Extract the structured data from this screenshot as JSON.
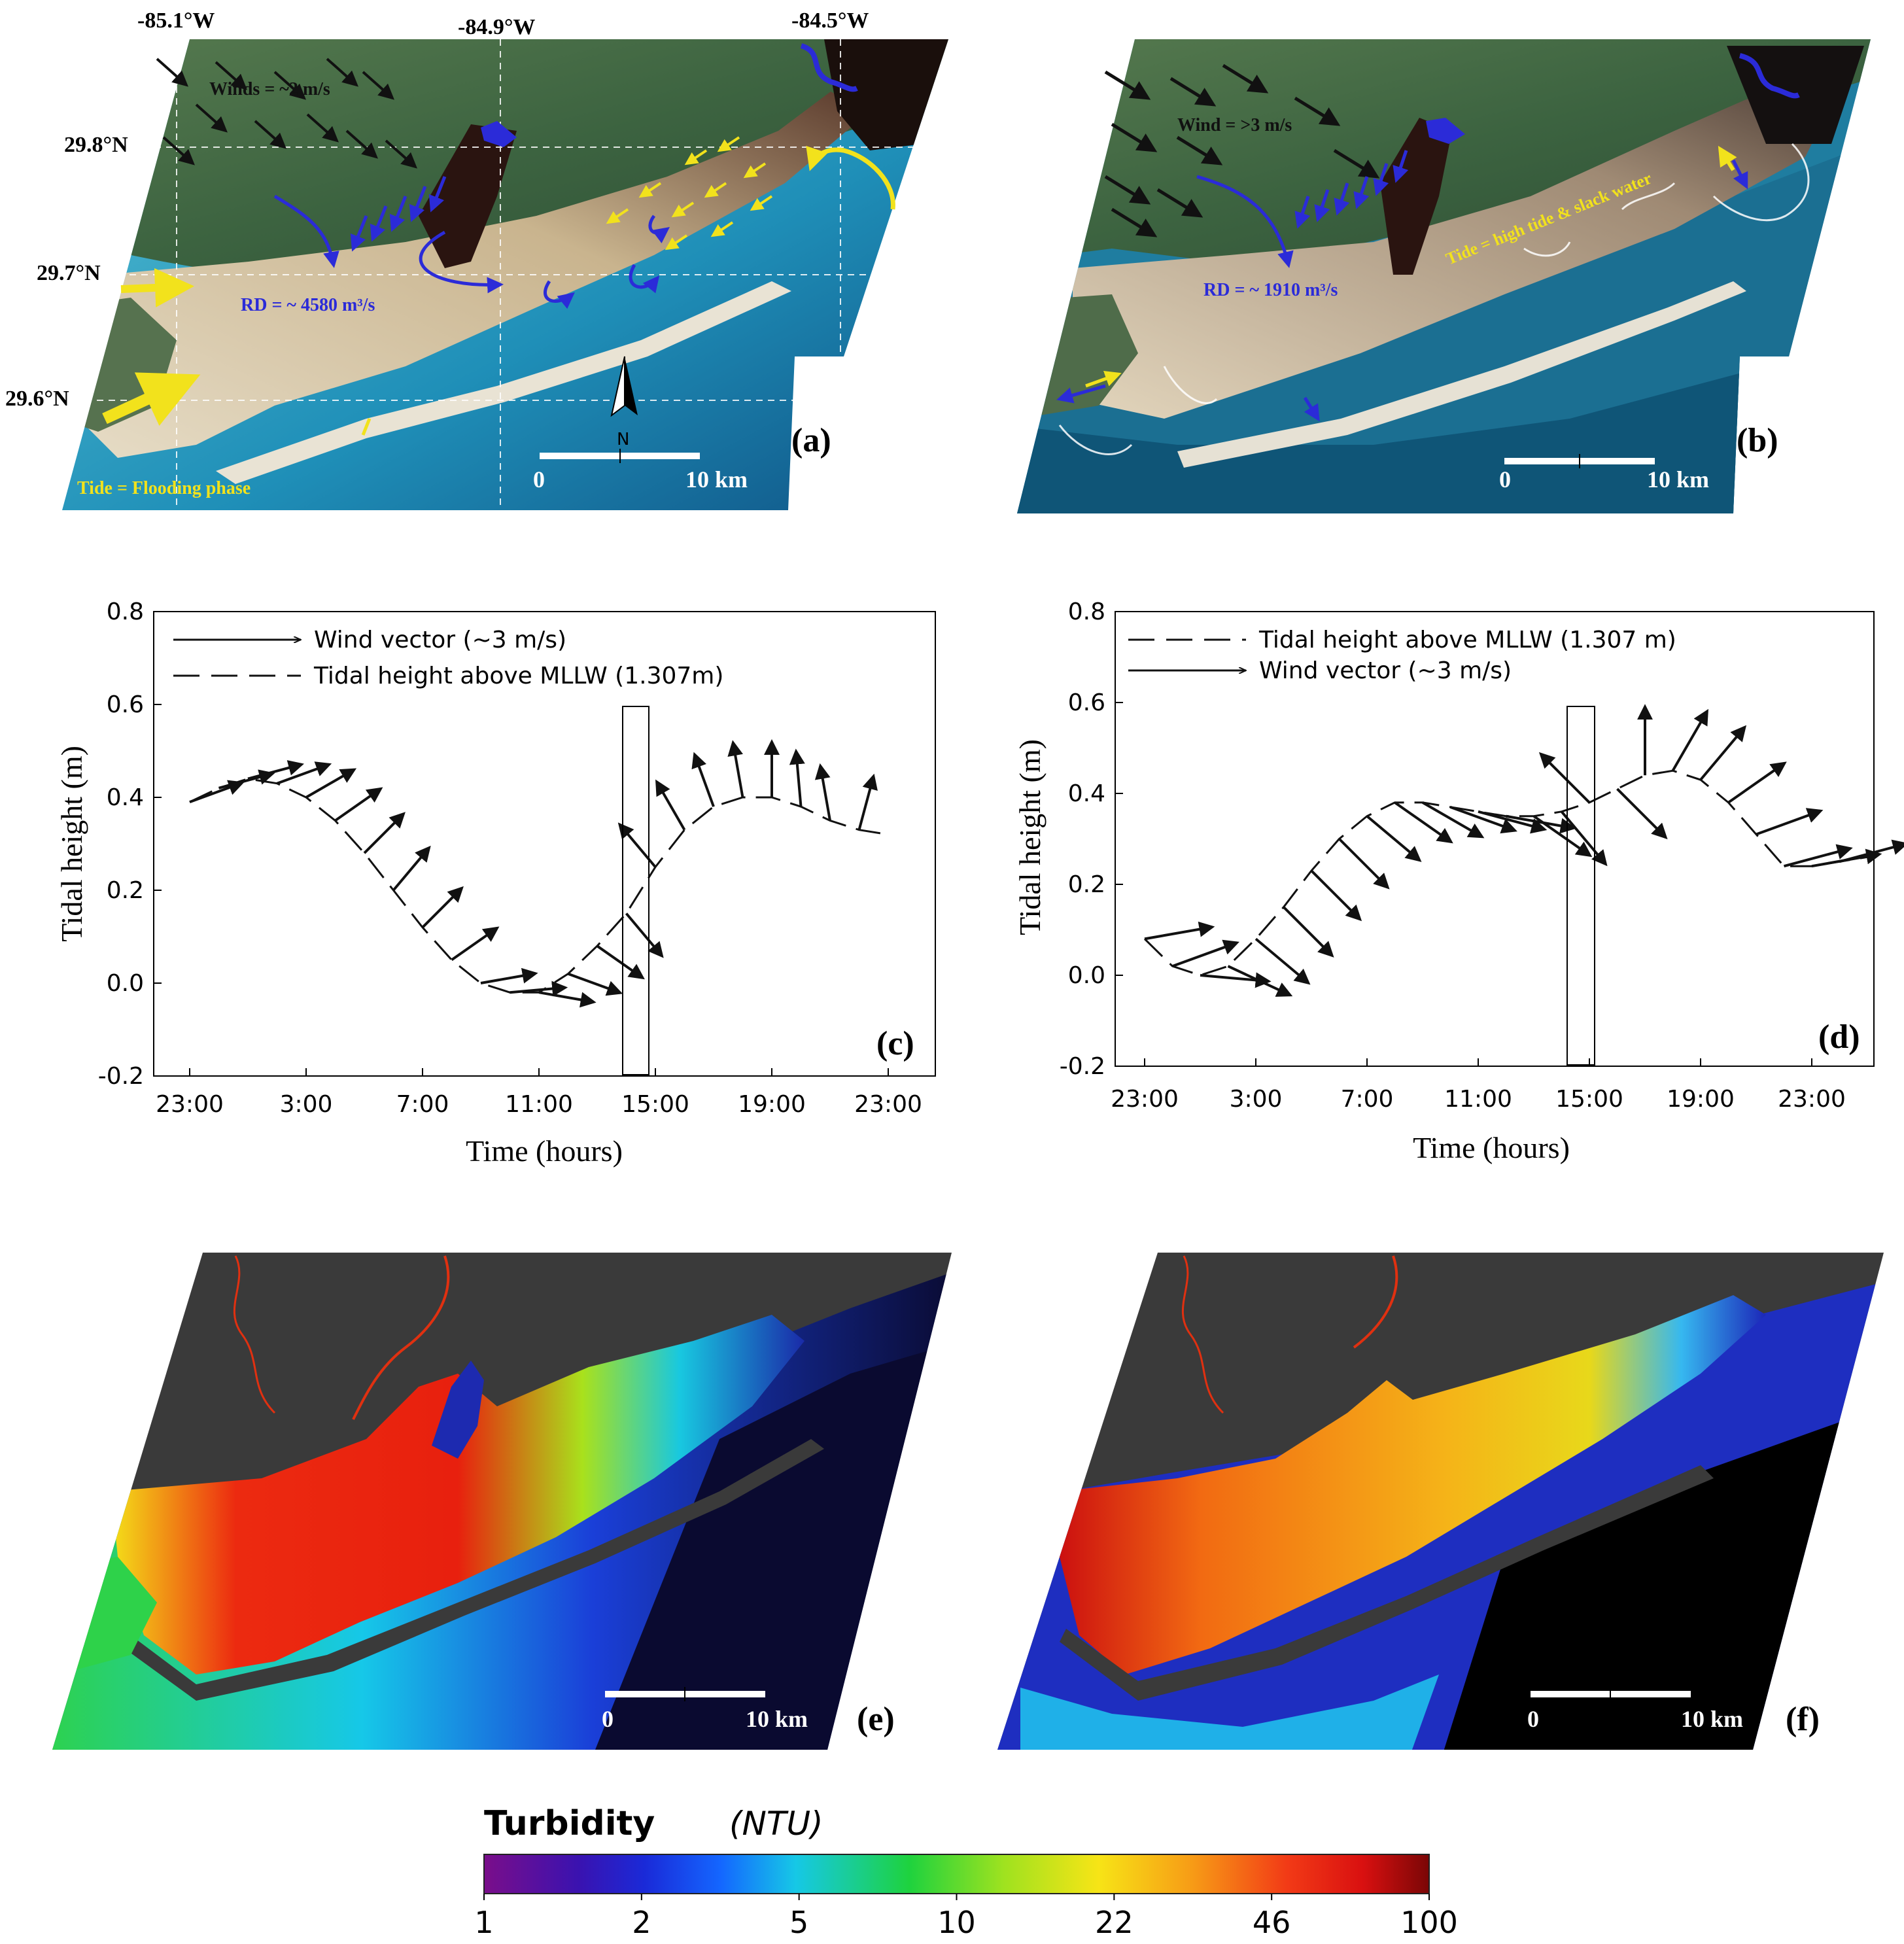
{
  "panels": {
    "a": {
      "letter": "(a)",
      "lon_labels": [
        "-85.1°W",
        "-84.9°W",
        "-84.5°W"
      ],
      "lat_labels": [
        "29.8°N",
        "29.7°N",
        "29.6°N"
      ],
      "winds_label": "Winds = ~2 m/s",
      "rd_label": "RD = ~ 4580 m³/s",
      "tide_label": "Tide = Flooding phase",
      "north_label": "N",
      "scale": {
        "start": "0",
        "end": "10 km"
      }
    },
    "b": {
      "letter": "(b)",
      "wind_label": "Wind = >3 m/s",
      "rd_label": "RD = ~ 1910 m³/s",
      "tide_label": "Tide = high tide & slack water",
      "scale": {
        "start": "0",
        "end": "10 km"
      }
    },
    "e": {
      "letter": "(e)",
      "scale": {
        "start": "0",
        "end": "10 km"
      }
    },
    "f": {
      "letter": "(f)",
      "scale": {
        "start": "0",
        "end": "10 km"
      }
    }
  },
  "colors": {
    "rd_blue": "#2b2bd8",
    "tide_yellow": "#f2e21c",
    "wind_black": "#111111",
    "land_green": "#3f6b45",
    "water_blue": "#2a9fc4",
    "turbid_sand": "#c9b291"
  },
  "chart_data": [
    {
      "type": "line",
      "panel": "(c)",
      "xlabel": "Time (hours)",
      "ylabel": "Tidal height (m)",
      "x_ticks": [
        "23:00",
        "3:00",
        "7:00",
        "11:00",
        "15:00",
        "19:00",
        "23:00"
      ],
      "y_ticks": [
        "-0.2",
        "0.0",
        "0.2",
        "0.4",
        "0.6",
        "0.8"
      ],
      "ylim": [
        -0.2,
        0.8
      ],
      "legend": [
        "Wind vector (~3 m/s)",
        "Tidal height above MLLW (1.307m)"
      ],
      "legend_position": "top-left",
      "highlight_time": "15:00",
      "series": [
        {
          "name": "Tidal height above MLLW (1.307m)",
          "style": "dashed",
          "x_hours": [
            0,
            1,
            2,
            3,
            4,
            5,
            6,
            7,
            8,
            9,
            10,
            11,
            12,
            13,
            14,
            15,
            16,
            17,
            18,
            19,
            20,
            21,
            22,
            23,
            24
          ],
          "values": [
            0.39,
            0.42,
            0.44,
            0.43,
            0.4,
            0.35,
            0.28,
            0.2,
            0.12,
            0.05,
            0.0,
            -0.02,
            -0.02,
            0.02,
            0.08,
            0.15,
            0.25,
            0.33,
            0.38,
            0.4,
            0.4,
            0.38,
            0.35,
            0.33,
            0.32
          ]
        },
        {
          "name": "Wind vector (~3 m/s)",
          "style": "arrows",
          "x_hours": [
            0,
            1,
            2,
            3,
            4,
            5,
            6,
            7,
            8,
            9,
            10,
            11,
            12,
            13,
            14,
            15,
            16,
            17,
            18,
            19,
            20,
            21,
            22,
            23
          ],
          "direction_deg": [
            20,
            15,
            15,
            20,
            30,
            35,
            45,
            50,
            45,
            35,
            10,
            5,
            -10,
            -20,
            -35,
            -50,
            130,
            120,
            110,
            100,
            90,
            95,
            100,
            75
          ]
        }
      ]
    },
    {
      "type": "line",
      "panel": "(d)",
      "xlabel": "Time (hours)",
      "ylabel": "Tidal height (m)",
      "x_ticks": [
        "23:00",
        "3:00",
        "7:00",
        "11:00",
        "15:00",
        "19:00",
        "23:00"
      ],
      "y_ticks": [
        "-0.2",
        "0.0",
        "0.2",
        "0.4",
        "0.6",
        "0.8"
      ],
      "ylim": [
        -0.2,
        0.8
      ],
      "legend": [
        "Tidal height above MLLW (1.307 m)",
        "Wind vector (~3 m/s)"
      ],
      "legend_position": "top-left",
      "highlight_time": "15:00",
      "series": [
        {
          "name": "Tidal height above MLLW (1.307 m)",
          "style": "dashed",
          "x_hours": [
            0,
            1,
            2,
            3,
            4,
            5,
            6,
            7,
            8,
            9,
            10,
            11,
            12,
            13,
            14,
            15,
            16,
            17,
            18,
            19,
            20,
            21,
            22,
            23,
            24,
            25,
            26
          ],
          "values": [
            0.08,
            0.02,
            0.0,
            0.02,
            0.08,
            0.15,
            0.23,
            0.3,
            0.35,
            0.38,
            0.38,
            0.37,
            0.36,
            0.35,
            0.35,
            0.36,
            0.38,
            0.41,
            0.44,
            0.45,
            0.43,
            0.38,
            0.31,
            0.24,
            0.24,
            0.25,
            0.26
          ]
        },
        {
          "name": "Wind vector (~3 m/s)",
          "style": "arrows",
          "x_hours": [
            0,
            1,
            2,
            3,
            4,
            5,
            6,
            7,
            8,
            9,
            10,
            11,
            12,
            13,
            14,
            15,
            16,
            17,
            18,
            19,
            20,
            21,
            22,
            23,
            24,
            25
          ],
          "direction_deg": [
            10,
            20,
            -5,
            -25,
            -40,
            -45,
            -45,
            -45,
            -40,
            -35,
            -30,
            -20,
            -15,
            -10,
            -35,
            -50,
            135,
            -45,
            90,
            60,
            50,
            35,
            20,
            15,
            10,
            15
          ]
        }
      ]
    }
  ],
  "colorbar": {
    "title": "Turbidity",
    "unit": "(NTU)",
    "tick_labels": [
      "1",
      "2",
      "5",
      "10",
      "22",
      "46",
      "100"
    ],
    "stops": [
      "#7a0e8a",
      "#2b1ec4",
      "#1466ff",
      "#16d7e6",
      "#1ed23e",
      "#9fe21f",
      "#f7e416",
      "#f79b16",
      "#f23a16",
      "#d91010",
      "#7a0606"
    ]
  }
}
